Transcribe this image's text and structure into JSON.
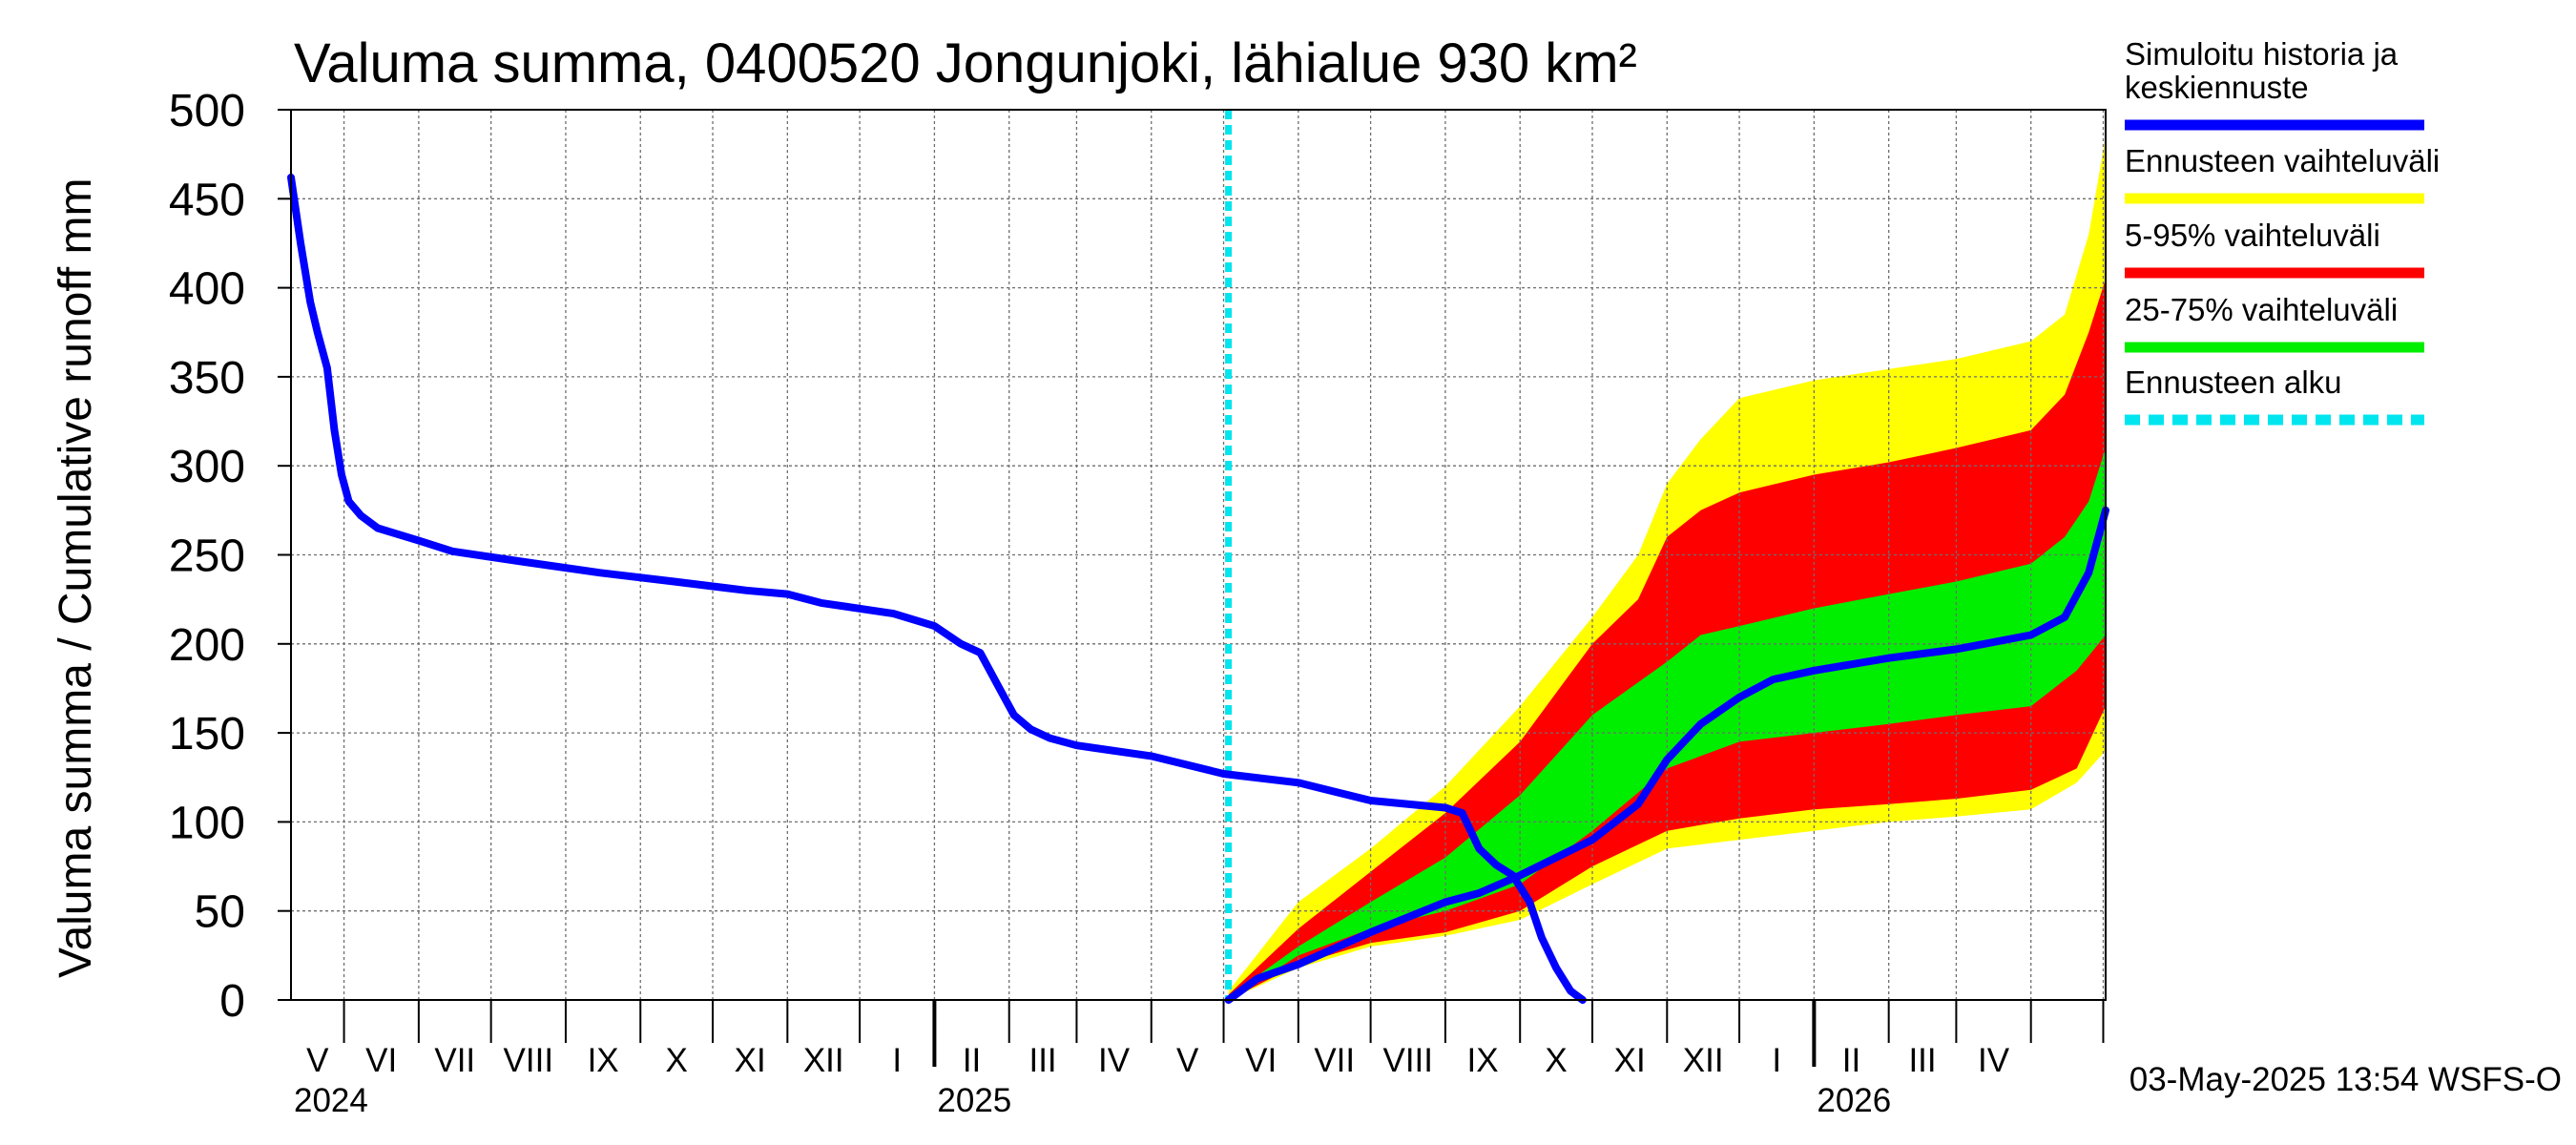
{
  "chart_data": {
    "type": "area",
    "title": "Valuma summa, 0400520 Jongunjoki, lähialue 930 km²",
    "ylabel": "Valuma summa / Cumulative runoff    mm",
    "ylim": [
      0,
      500
    ],
    "yticks": [
      0,
      50,
      100,
      150,
      200,
      250,
      300,
      350,
      400,
      450,
      500
    ],
    "x_start": "2024-04-09",
    "x_end": "2026-05-02",
    "forecast_start": "2025-05-03",
    "years": [
      "2024",
      "2025",
      "2026"
    ],
    "month_labels": [
      "V",
      "VI",
      "VII",
      "VIII",
      "IX",
      "X",
      "XI",
      "XII",
      "I",
      "II",
      "III",
      "IV",
      "V",
      "VI",
      "VII",
      "VIII",
      "IX",
      "X",
      "XI",
      "XII",
      "I",
      "II",
      "III",
      "IV"
    ],
    "series": [
      {
        "name": "Simuloitu historia ja keskiennuste",
        "color": "#0000ff",
        "points": [
          [
            "2024-04-09",
            462
          ],
          [
            "2024-04-13",
            425
          ],
          [
            "2024-04-17",
            392
          ],
          [
            "2024-04-20",
            375
          ],
          [
            "2024-04-24",
            355
          ],
          [
            "2024-04-27",
            320
          ],
          [
            "2024-04-30",
            295
          ],
          [
            "2024-05-03",
            280
          ],
          [
            "2024-05-08",
            272
          ],
          [
            "2024-05-15",
            265
          ],
          [
            "2024-06-01",
            258
          ],
          [
            "2024-06-15",
            252
          ],
          [
            "2024-07-15",
            246
          ],
          [
            "2024-08-15",
            240
          ],
          [
            "2024-09-15",
            235
          ],
          [
            "2024-10-15",
            230
          ],
          [
            "2024-11-01",
            228
          ],
          [
            "2024-11-15",
            223
          ],
          [
            "2024-12-15",
            217
          ],
          [
            "2025-01-01",
            210
          ],
          [
            "2025-01-12",
            200
          ],
          [
            "2025-01-20",
            195
          ],
          [
            "2025-01-28",
            175
          ],
          [
            "2025-02-03",
            160
          ],
          [
            "2025-02-10",
            152
          ],
          [
            "2025-02-18",
            147
          ],
          [
            "2025-03-01",
            143
          ],
          [
            "2025-04-01",
            137
          ],
          [
            "2025-05-01",
            127
          ],
          [
            "2025-06-01",
            122
          ],
          [
            "2025-07-01",
            112
          ],
          [
            "2025-08-01",
            108
          ],
          [
            "2025-08-08",
            105
          ],
          [
            "2025-08-15",
            85
          ],
          [
            "2025-08-22",
            76
          ],
          [
            "2025-08-29",
            70
          ],
          [
            "2025-09-05",
            55
          ],
          [
            "2025-09-10",
            35
          ],
          [
            "2025-09-16",
            18
          ],
          [
            "2025-09-22",
            5
          ],
          [
            "2025-09-27",
            0
          ]
        ]
      },
      {
        "name": "Ennusteen vaihteluväli",
        "color": "#ffff00",
        "upper": [
          [
            "2025-05-03",
            5
          ],
          [
            "2025-06-01",
            55
          ],
          [
            "2025-07-01",
            85
          ],
          [
            "2025-08-01",
            120
          ],
          [
            "2025-09-01",
            165
          ],
          [
            "2025-10-01",
            215
          ],
          [
            "2025-10-20",
            250
          ],
          [
            "2025-11-01",
            290
          ],
          [
            "2025-11-15",
            315
          ],
          [
            "2025-12-01",
            338
          ],
          [
            "2026-01-01",
            348
          ],
          [
            "2026-03-01",
            360
          ],
          [
            "2026-04-01",
            370
          ],
          [
            "2026-04-15",
            385
          ],
          [
            "2026-04-25",
            430
          ],
          [
            "2026-05-02",
            485
          ]
        ],
        "lower": [
          [
            "2025-05-03",
            0
          ],
          [
            "2025-06-01",
            18
          ],
          [
            "2025-07-01",
            30
          ],
          [
            "2025-08-01",
            36
          ],
          [
            "2025-09-01",
            45
          ],
          [
            "2025-10-01",
            65
          ],
          [
            "2025-11-01",
            85
          ],
          [
            "2025-12-01",
            90
          ],
          [
            "2026-01-01",
            95
          ],
          [
            "2026-02-01",
            100
          ],
          [
            "2026-03-01",
            103
          ],
          [
            "2026-04-01",
            107
          ],
          [
            "2026-04-20",
            122
          ],
          [
            "2026-05-02",
            140
          ]
        ]
      },
      {
        "name": "5-95% vaihteluväli",
        "color": "#ff0000",
        "upper": [
          [
            "2025-05-03",
            3
          ],
          [
            "2025-06-01",
            40
          ],
          [
            "2025-07-01",
            72
          ],
          [
            "2025-08-01",
            105
          ],
          [
            "2025-09-01",
            145
          ],
          [
            "2025-10-01",
            200
          ],
          [
            "2025-10-20",
            225
          ],
          [
            "2025-11-01",
            260
          ],
          [
            "2025-11-15",
            275
          ],
          [
            "2025-12-01",
            285
          ],
          [
            "2026-01-01",
            295
          ],
          [
            "2026-02-01",
            302
          ],
          [
            "2026-03-01",
            310
          ],
          [
            "2026-04-01",
            320
          ],
          [
            "2026-04-15",
            340
          ],
          [
            "2026-04-25",
            375
          ],
          [
            "2026-05-02",
            405
          ]
        ],
        "lower": [
          [
            "2025-05-03",
            0
          ],
          [
            "2025-06-01",
            20
          ],
          [
            "2025-07-01",
            32
          ],
          [
            "2025-08-01",
            38
          ],
          [
            "2025-09-01",
            50
          ],
          [
            "2025-10-01",
            75
          ],
          [
            "2025-11-01",
            95
          ],
          [
            "2025-12-01",
            102
          ],
          [
            "2026-01-01",
            107
          ],
          [
            "2026-02-01",
            110
          ],
          [
            "2026-03-01",
            113
          ],
          [
            "2026-04-01",
            118
          ],
          [
            "2026-04-20",
            130
          ],
          [
            "2026-05-02",
            165
          ]
        ]
      },
      {
        "name": "25-75% vaihteluväli",
        "color": "#00ee00",
        "upper": [
          [
            "2025-05-03",
            2
          ],
          [
            "2025-06-01",
            30
          ],
          [
            "2025-07-01",
            55
          ],
          [
            "2025-08-01",
            80
          ],
          [
            "2025-09-01",
            115
          ],
          [
            "2025-10-01",
            160
          ],
          [
            "2025-11-01",
            190
          ],
          [
            "2025-11-15",
            205
          ],
          [
            "2025-12-01",
            210
          ],
          [
            "2026-01-01",
            220
          ],
          [
            "2026-02-01",
            228
          ],
          [
            "2026-03-01",
            235
          ],
          [
            "2026-04-01",
            245
          ],
          [
            "2026-04-15",
            260
          ],
          [
            "2026-04-25",
            280
          ],
          [
            "2026-05-02",
            310
          ]
        ],
        "lower": [
          [
            "2025-05-03",
            0
          ],
          [
            "2025-06-01",
            25
          ],
          [
            "2025-07-01",
            40
          ],
          [
            "2025-08-01",
            50
          ],
          [
            "2025-09-01",
            65
          ],
          [
            "2025-10-01",
            95
          ],
          [
            "2025-11-01",
            130
          ],
          [
            "2025-12-01",
            145
          ],
          [
            "2026-01-01",
            150
          ],
          [
            "2026-02-01",
            155
          ],
          [
            "2026-03-01",
            160
          ],
          [
            "2026-04-01",
            165
          ],
          [
            "2026-04-20",
            185
          ],
          [
            "2026-05-02",
            205
          ]
        ]
      },
      {
        "name": "Keskiennuste",
        "color": "#0000ff",
        "points": [
          [
            "2025-05-03",
            0
          ],
          [
            "2025-05-15",
            12
          ],
          [
            "2025-06-01",
            20
          ],
          [
            "2025-07-01",
            38
          ],
          [
            "2025-08-01",
            55
          ],
          [
            "2025-08-15",
            60
          ],
          [
            "2025-09-01",
            70
          ],
          [
            "2025-10-01",
            90
          ],
          [
            "2025-10-20",
            110
          ],
          [
            "2025-11-01",
            135
          ],
          [
            "2025-11-15",
            155
          ],
          [
            "2025-12-01",
            170
          ],
          [
            "2025-12-15",
            180
          ],
          [
            "2026-01-01",
            185
          ],
          [
            "2026-02-01",
            192
          ],
          [
            "2026-03-01",
            197
          ],
          [
            "2026-04-01",
            205
          ],
          [
            "2026-04-15",
            215
          ],
          [
            "2026-04-25",
            240
          ],
          [
            "2026-05-02",
            275
          ]
        ]
      }
    ],
    "legend": [
      {
        "label": "Simuloitu historia ja keskiennuste",
        "color": "#0000ff",
        "style": "solid"
      },
      {
        "label": "Ennusteen vaihteluväli",
        "color": "#ffff00",
        "style": "solid"
      },
      {
        "label": "5-95% vaihteluväli",
        "color": "#ff0000",
        "style": "solid"
      },
      {
        "label": "25-75% vaihteluväli",
        "color": "#00ee00",
        "style": "solid"
      },
      {
        "label": "Ennusteen alku",
        "color": "#00e5ee",
        "style": "dashed"
      }
    ],
    "timestamp": "03-May-2025 13:54 WSFS-O"
  }
}
